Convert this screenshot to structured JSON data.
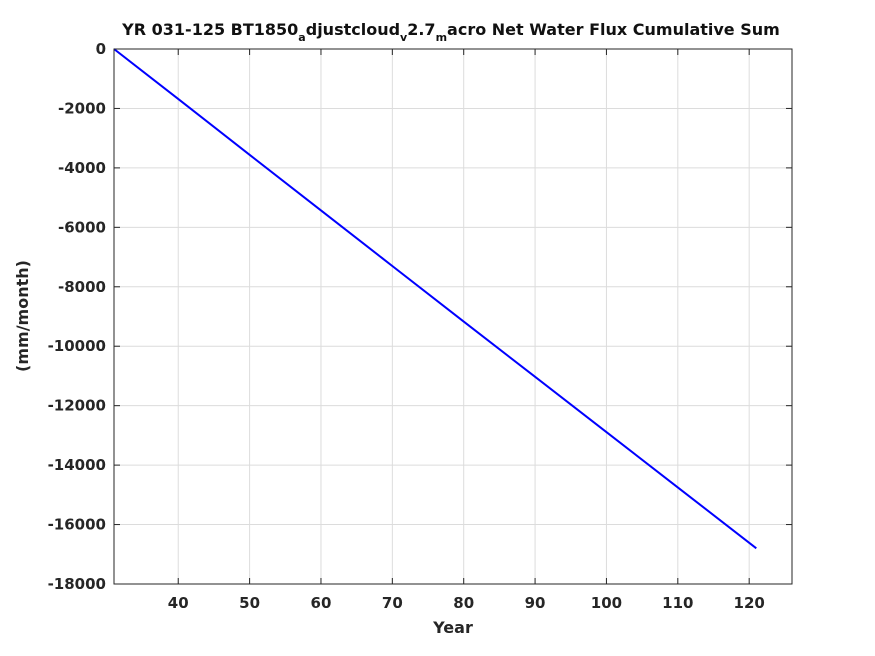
{
  "chart_data": {
    "type": "line",
    "title": {
      "parts": [
        {
          "text": "YR 031-125 BT1850",
          "sub": false
        },
        {
          "text": "a",
          "sub": true
        },
        {
          "text": "djustcloud",
          "sub": false
        },
        {
          "text": "v",
          "sub": true
        },
        {
          "text": "2.7",
          "sub": false
        },
        {
          "text": "m",
          "sub": true
        },
        {
          "text": "acro Net Water Flux Cumulative Sum",
          "sub": false
        }
      ]
    },
    "xlabel": "Year",
    "ylabel": "(mm/month)",
    "xlim": [
      31,
      126
    ],
    "ylim": [
      -18000,
      0
    ],
    "xticks": [
      40,
      50,
      60,
      70,
      80,
      90,
      100,
      110,
      120
    ],
    "yticks": [
      0,
      -2000,
      -4000,
      -6000,
      -8000,
      -10000,
      -12000,
      -14000,
      -16000,
      -18000
    ],
    "grid": true,
    "series": [
      {
        "color": "#0000ff",
        "x": [
          31,
          40,
          50,
          60,
          70,
          80,
          90,
          100,
          110,
          121
        ],
        "y": [
          0,
          -1680,
          -3560,
          -5430,
          -7300,
          -9170,
          -11030,
          -12890,
          -14750,
          -16800
        ]
      }
    ]
  }
}
